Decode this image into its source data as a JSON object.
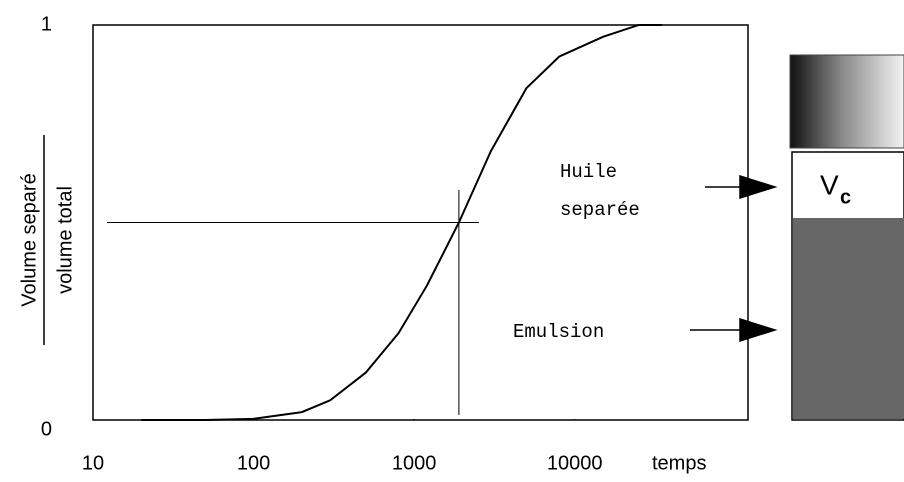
{
  "chart_data": {
    "type": "line",
    "x": [
      20,
      50,
      100,
      200,
      300,
      500,
      800,
      1200,
      1900,
      3000,
      5000,
      8000,
      15000,
      25000,
      35000
    ],
    "values": [
      0,
      0,
      0.003,
      0.02,
      0.05,
      0.12,
      0.22,
      0.34,
      0.5,
      0.68,
      0.84,
      0.92,
      0.97,
      1,
      1
    ],
    "color": "#000000",
    "xlim": [
      10,
      120000
    ],
    "xscale": "log",
    "xticks": [
      10,
      100,
      1000,
      10000
    ],
    "ylim": [
      0,
      1
    ],
    "yticks": [
      0,
      1
    ],
    "x_label": "temps",
    "y_label": {
      "numerator": "Volume  separé",
      "denominator": "volume  total"
    },
    "reference_point": {
      "x": 1900,
      "y": 0.5
    },
    "diagram": {
      "upper_label": [
        "Huile",
        "separée"
      ],
      "lower_label": "Emulsion",
      "volume_symbol": {
        "main": "V",
        "sub": "c"
      }
    }
  }
}
